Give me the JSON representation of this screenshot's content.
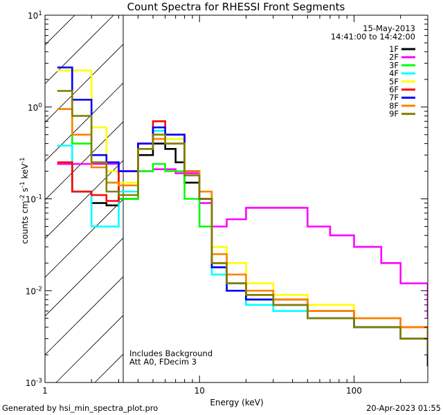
{
  "chart_data": {
    "type": "line",
    "title": "Count Spectra for RHESSI Front Segments",
    "date_label": "15-May-2013",
    "time_range_label": "14:41:00 to 14:42:00",
    "xlabel": "Energy (keV)",
    "ylabel_parts": {
      "main": "counts cm",
      "sup1": "-2",
      "mid": " s",
      "sup2": "-1",
      "end": " keV",
      "sup3": "-1"
    },
    "xscale": "log",
    "yscale": "log",
    "xlim": [
      1,
      300
    ],
    "ylim": [
      0.001,
      10
    ],
    "x_ticks": [
      {
        "value": 1,
        "label": "1"
      },
      {
        "value": 10,
        "label": "10"
      },
      {
        "value": 100,
        "label": "100"
      }
    ],
    "y_ticks": [
      {
        "exp": 1,
        "base": "10",
        "sup": "1"
      },
      {
        "exp": 0,
        "base": "10",
        "sup": "0"
      },
      {
        "exp": -1,
        "base": "10",
        "sup": "-1"
      },
      {
        "exp": -2,
        "base": "10",
        "sup": "-2"
      },
      {
        "exp": -3,
        "base": "10",
        "sup": "-3"
      }
    ],
    "hatched_region_keV": [
      1,
      3
    ],
    "annotations": [
      "Includes Background",
      "Att A0, FDecim 3"
    ],
    "footer_left": "Generated by hsi_min_spectra_plot.pro",
    "footer_right": "20-Apr-2023 01:55",
    "series": [
      {
        "name": "1F",
        "color": "#000000",
        "points": [
          [
            1.2,
            0.24
          ],
          [
            1.5,
            0.12
          ],
          [
            2,
            0.09
          ],
          [
            2.5,
            0.085
          ],
          [
            3,
            0.1
          ],
          [
            4,
            0.3
          ],
          [
            5,
            0.4
          ],
          [
            6,
            0.35
          ],
          [
            7,
            0.25
          ],
          [
            8,
            0.15
          ],
          [
            10,
            0.1
          ],
          [
            12,
            0.02
          ],
          [
            15,
            0.012
          ],
          [
            20,
            0.008
          ],
          [
            30,
            0.007
          ],
          [
            50,
            0.005
          ],
          [
            100,
            0.004
          ],
          [
            200,
            0.003
          ],
          [
            300,
            0.0015
          ]
        ]
      },
      {
        "name": "2F",
        "color": "#ff00ff",
        "points": [
          [
            1.2,
            0.24
          ],
          [
            2,
            0.24
          ],
          [
            3,
            0.2
          ],
          [
            4,
            0.2
          ],
          [
            5,
            0.21
          ],
          [
            7,
            0.19
          ],
          [
            10,
            0.09
          ],
          [
            12,
            0.05
          ],
          [
            15,
            0.06
          ],
          [
            20,
            0.08
          ],
          [
            30,
            0.08
          ],
          [
            50,
            0.05
          ],
          [
            70,
            0.04
          ],
          [
            100,
            0.03
          ],
          [
            150,
            0.02
          ],
          [
            200,
            0.012
          ],
          [
            300,
            0.005
          ]
        ]
      },
      {
        "name": "3F",
        "color": "#00ff00",
        "points": [
          [
            1.2,
            0.95
          ],
          [
            1.5,
            0.4
          ],
          [
            2,
            0.25
          ],
          [
            2.5,
            0.15
          ],
          [
            3,
            0.1
          ],
          [
            4,
            0.2
          ],
          [
            5,
            0.24
          ],
          [
            6,
            0.2
          ],
          [
            8,
            0.1
          ],
          [
            10,
            0.05
          ],
          [
            12,
            0.018
          ],
          [
            15,
            0.012
          ],
          [
            20,
            0.009
          ],
          [
            30,
            0.008
          ],
          [
            50,
            0.006
          ],
          [
            100,
            0.005
          ],
          [
            200,
            0.004
          ],
          [
            300,
            0.003
          ]
        ]
      },
      {
        "name": "4F",
        "color": "#00ffff",
        "points": [
          [
            1.2,
            0.38
          ],
          [
            1.5,
            0.12
          ],
          [
            2,
            0.05
          ],
          [
            2.5,
            0.05
          ],
          [
            3,
            0.12
          ],
          [
            4,
            0.4
          ],
          [
            5,
            0.55
          ],
          [
            6,
            0.45
          ],
          [
            8,
            0.2
          ],
          [
            10,
            0.1
          ],
          [
            12,
            0.015
          ],
          [
            15,
            0.01
          ],
          [
            20,
            0.007
          ],
          [
            30,
            0.006
          ],
          [
            50,
            0.005
          ],
          [
            100,
            0.004
          ],
          [
            200,
            0.003
          ],
          [
            300,
            0.002
          ]
        ]
      },
      {
        "name": "5F",
        "color": "#ffff00",
        "points": [
          [
            1.2,
            2.5
          ],
          [
            1.5,
            2.5
          ],
          [
            2,
            0.6
          ],
          [
            2.5,
            0.2
          ],
          [
            3,
            0.15
          ],
          [
            4,
            0.4
          ],
          [
            5,
            0.5
          ],
          [
            6,
            0.45
          ],
          [
            8,
            0.2
          ],
          [
            10,
            0.12
          ],
          [
            12,
            0.03
          ],
          [
            15,
            0.02
          ],
          [
            20,
            0.012
          ],
          [
            30,
            0.009
          ],
          [
            50,
            0.007
          ],
          [
            100,
            0.005
          ],
          [
            200,
            0.004
          ],
          [
            300,
            0.004
          ]
        ]
      },
      {
        "name": "6F",
        "color": "#ff0000",
        "points": [
          [
            1.2,
            0.25
          ],
          [
            1.5,
            0.12
          ],
          [
            2,
            0.11
          ],
          [
            2.5,
            0.095
          ],
          [
            3,
            0.2
          ],
          [
            4,
            0.4
          ],
          [
            5,
            0.7
          ],
          [
            6,
            0.5
          ],
          [
            8,
            0.2
          ],
          [
            10,
            0.1
          ],
          [
            12,
            0.02
          ],
          [
            15,
            0.012
          ],
          [
            20,
            0.009
          ],
          [
            30,
            0.008
          ],
          [
            50,
            0.006
          ],
          [
            100,
            0.005
          ],
          [
            200,
            0.004
          ],
          [
            300,
            0.003
          ]
        ]
      },
      {
        "name": "7F",
        "color": "#0000ff",
        "points": [
          [
            1.2,
            2.7
          ],
          [
            1.5,
            1.2
          ],
          [
            2,
            0.3
          ],
          [
            2.5,
            0.25
          ],
          [
            3,
            0.2
          ],
          [
            4,
            0.4
          ],
          [
            5,
            0.6
          ],
          [
            6,
            0.5
          ],
          [
            8,
            0.2
          ],
          [
            10,
            0.1
          ],
          [
            12,
            0.018
          ],
          [
            15,
            0.01
          ],
          [
            20,
            0.008
          ],
          [
            30,
            0.007
          ],
          [
            50,
            0.005
          ],
          [
            100,
            0.004
          ],
          [
            200,
            0.003
          ],
          [
            300,
            0.002
          ]
        ]
      },
      {
        "name": "8F",
        "color": "#ff8000",
        "points": [
          [
            1.2,
            0.95
          ],
          [
            1.5,
            0.5
          ],
          [
            2,
            0.22
          ],
          [
            2.5,
            0.15
          ],
          [
            3,
            0.14
          ],
          [
            4,
            0.35
          ],
          [
            5,
            0.45
          ],
          [
            6,
            0.4
          ],
          [
            8,
            0.2
          ],
          [
            10,
            0.12
          ],
          [
            12,
            0.025
          ],
          [
            15,
            0.015
          ],
          [
            20,
            0.01
          ],
          [
            30,
            0.008
          ],
          [
            50,
            0.006
          ],
          [
            100,
            0.005
          ],
          [
            200,
            0.004
          ],
          [
            300,
            0.003
          ]
        ]
      },
      {
        "name": "9F",
        "color": "#808000",
        "points": [
          [
            1.2,
            1.5
          ],
          [
            1.5,
            0.8
          ],
          [
            2,
            0.25
          ],
          [
            2.5,
            0.12
          ],
          [
            3,
            0.11
          ],
          [
            4,
            0.35
          ],
          [
            5,
            0.5
          ],
          [
            6,
            0.4
          ],
          [
            8,
            0.18
          ],
          [
            10,
            0.1
          ],
          [
            12,
            0.02
          ],
          [
            15,
            0.012
          ],
          [
            20,
            0.009
          ],
          [
            30,
            0.007
          ],
          [
            50,
            0.005
          ],
          [
            100,
            0.004
          ],
          [
            200,
            0.003
          ],
          [
            300,
            0.002
          ]
        ]
      }
    ]
  }
}
